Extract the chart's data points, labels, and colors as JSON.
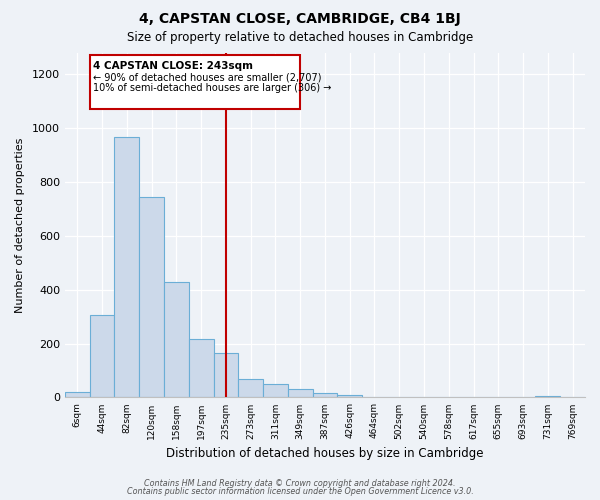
{
  "title": "4, CAPSTAN CLOSE, CAMBRIDGE, CB4 1BJ",
  "subtitle": "Size of property relative to detached houses in Cambridge",
  "xlabel": "Distribution of detached houses by size in Cambridge",
  "ylabel": "Number of detached properties",
  "bar_color": "#ccd9ea",
  "bar_edge_color": "#6baed6",
  "tick_labels": [
    "6sqm",
    "44sqm",
    "82sqm",
    "120sqm",
    "158sqm",
    "197sqm",
    "235sqm",
    "273sqm",
    "311sqm",
    "349sqm",
    "387sqm",
    "426sqm",
    "464sqm",
    "502sqm",
    "540sqm",
    "578sqm",
    "617sqm",
    "655sqm",
    "693sqm",
    "731sqm",
    "769sqm"
  ],
  "bar_values": [
    20,
    305,
    965,
    745,
    430,
    215,
    165,
    70,
    48,
    33,
    18,
    8,
    3,
    0,
    0,
    0,
    0,
    0,
    0,
    7,
    0
  ],
  "vline_x_index": 6,
  "vline_color": "#c00000",
  "annotation_title": "4 CAPSTAN CLOSE: 243sqm",
  "annotation_line1": "← 90% of detached houses are smaller (2,707)",
  "annotation_line2": "10% of semi-detached houses are larger (306) →",
  "ylim": [
    0,
    1280
  ],
  "yticks": [
    0,
    200,
    400,
    600,
    800,
    1000,
    1200
  ],
  "footer_line1": "Contains HM Land Registry data © Crown copyright and database right 2024.",
  "footer_line2": "Contains public sector information licensed under the Open Government Licence v3.0.",
  "bg_color": "#eef2f7",
  "plot_bg_color": "#eef2f7",
  "grid_color": "#ffffff",
  "spine_color": "#c0c0c0"
}
